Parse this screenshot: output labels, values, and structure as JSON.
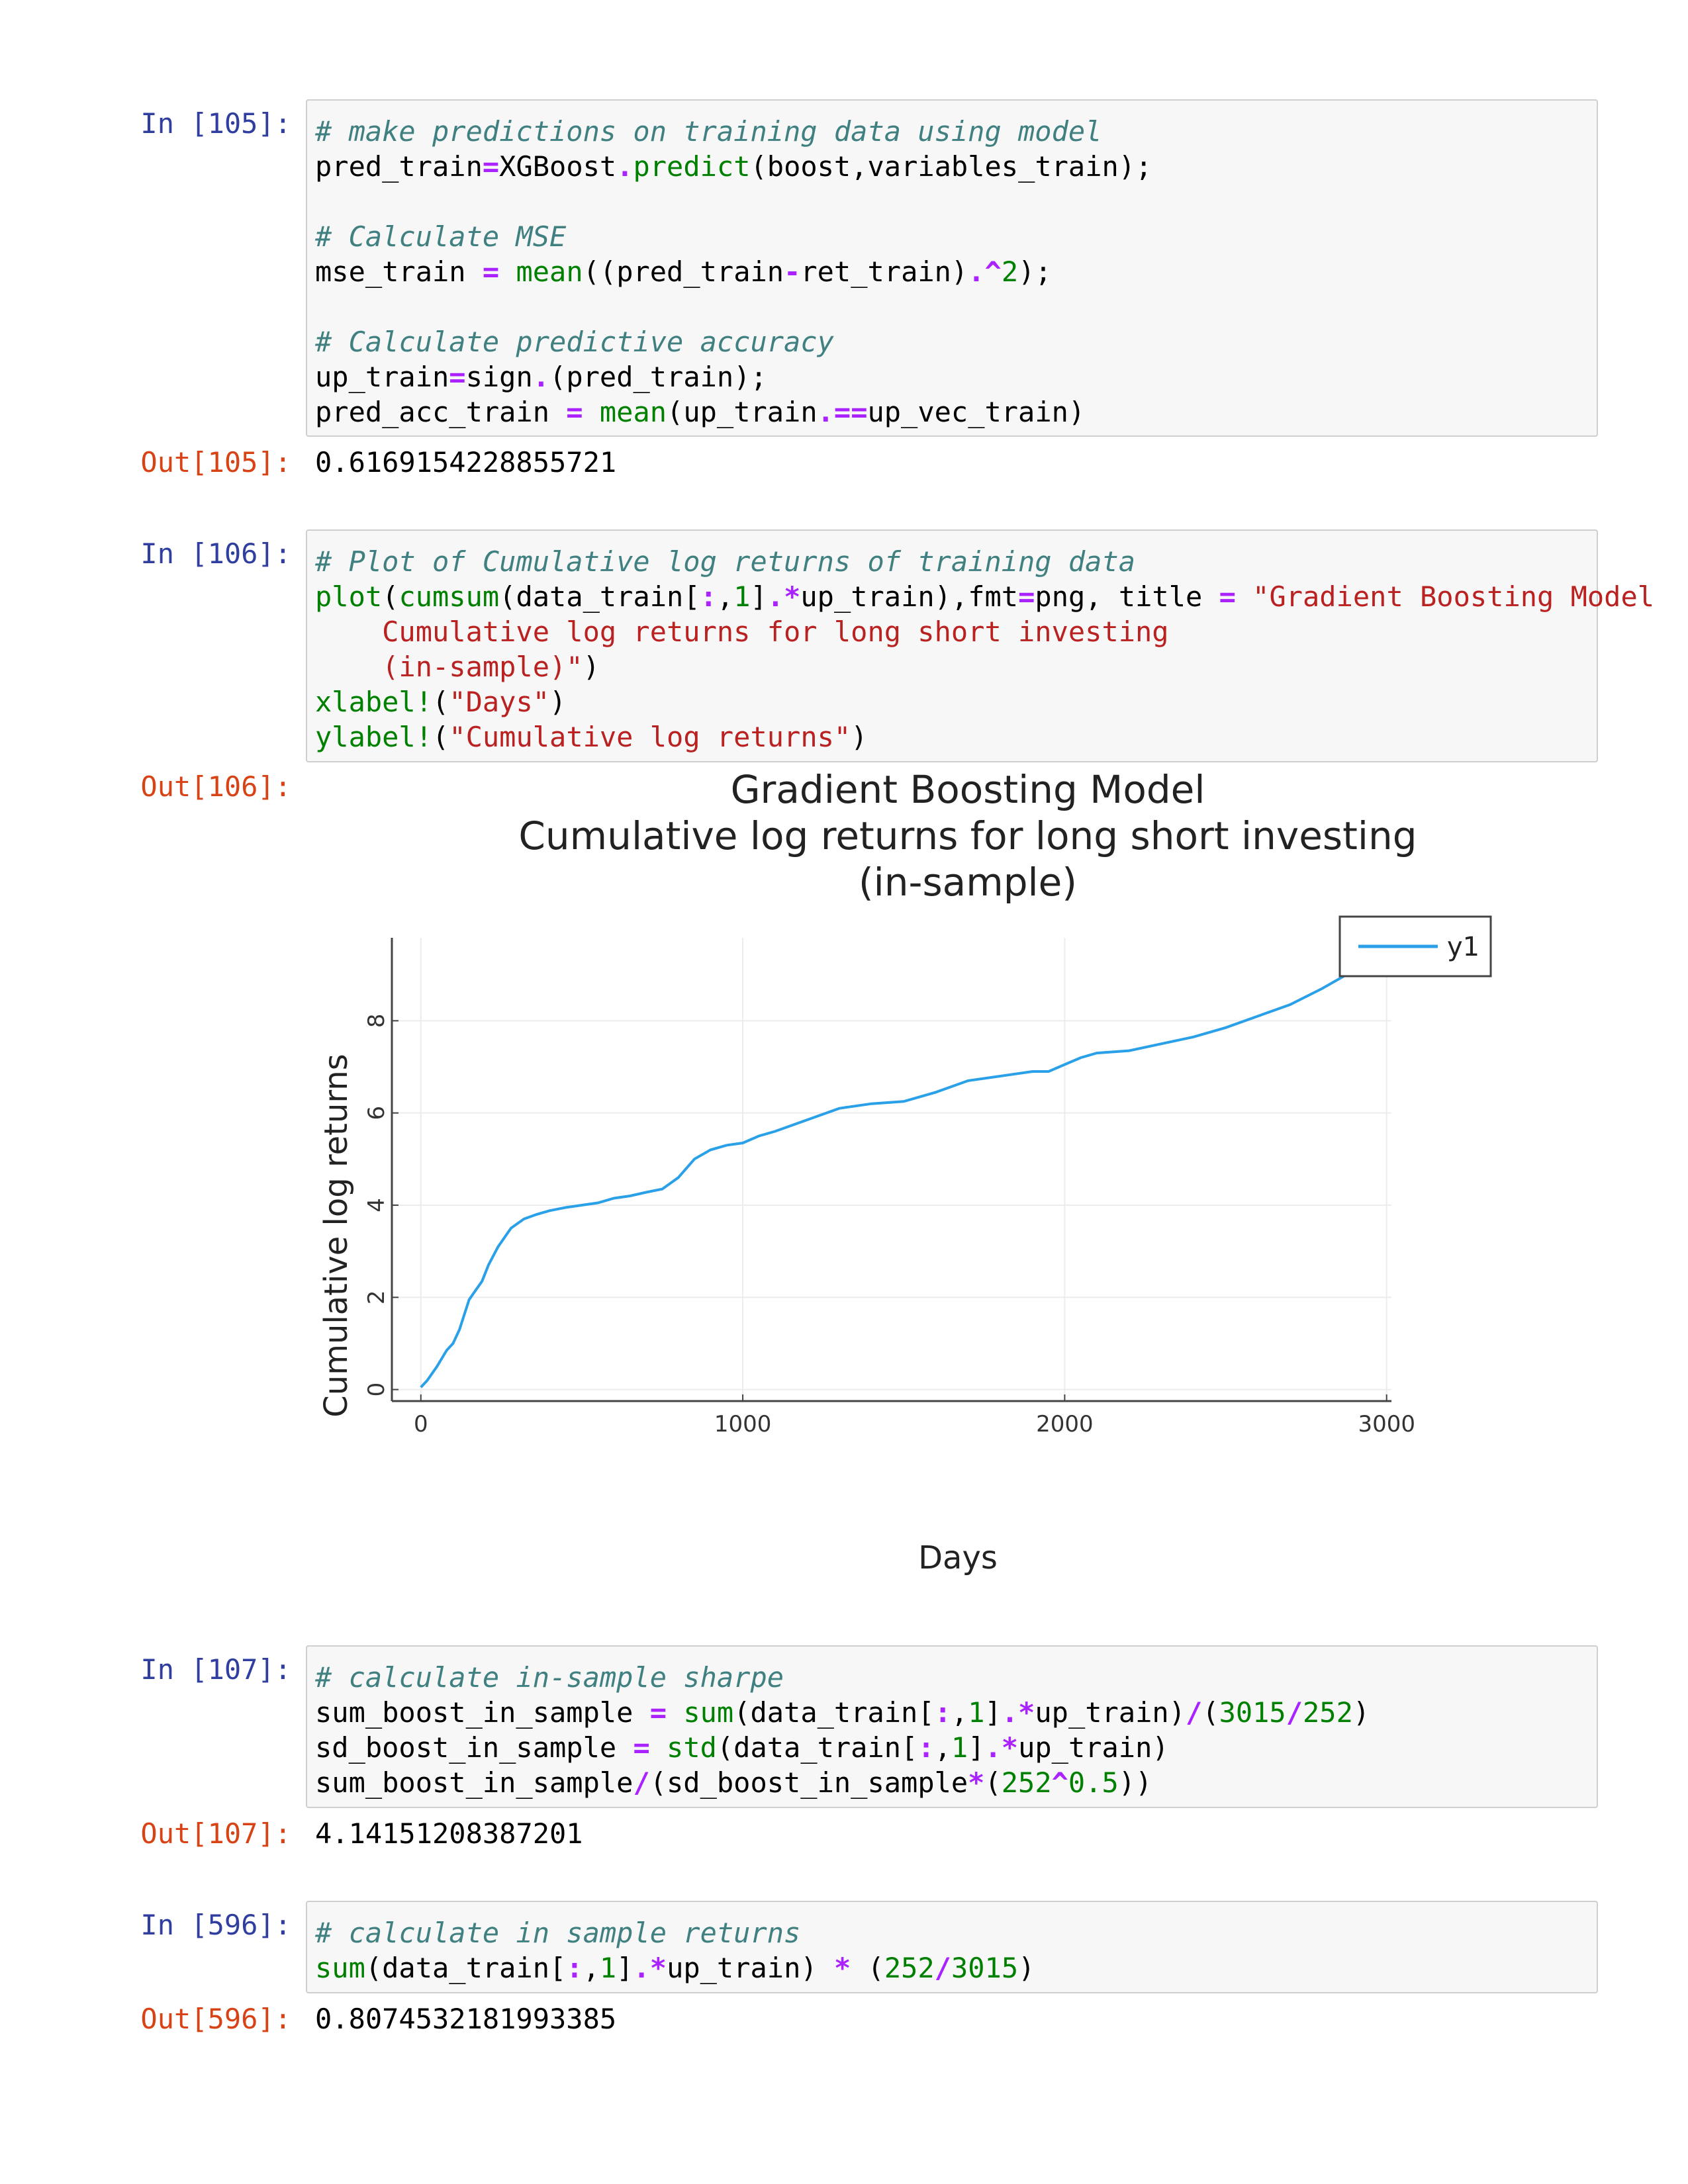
{
  "cells": [
    {
      "in_prompt": "In [105]:",
      "code": [
        [
          [
            "cm",
            "# make predictions on training data using model"
          ]
        ],
        [
          [
            "",
            "pred_train"
          ],
          [
            "op",
            "="
          ],
          [
            "",
            "XGBoost"
          ],
          [
            "op",
            "."
          ],
          [
            "nb",
            "predict"
          ],
          [
            "",
            "(boost,variables_train);"
          ]
        ],
        [],
        [
          [
            "cm",
            "# Calculate MSE"
          ]
        ],
        [
          [
            "",
            "mse_train "
          ],
          [
            "op",
            "="
          ],
          [
            "",
            " "
          ],
          [
            "nb",
            "mean"
          ],
          [
            "",
            "((pred_train"
          ],
          [
            "op",
            "-"
          ],
          [
            "",
            "ret_train)"
          ],
          [
            "op",
            ".^"
          ],
          [
            "mi",
            "2"
          ],
          [
            "",
            ");"
          ]
        ],
        [],
        [
          [
            "cm",
            "# Calculate predictive accuracy"
          ]
        ],
        [
          [
            "",
            "up_train"
          ],
          [
            "op",
            "="
          ],
          [
            "",
            "sign"
          ],
          [
            "op",
            "."
          ],
          [
            "",
            "(pred_train);"
          ]
        ],
        [
          [
            "",
            "pred_acc_train "
          ],
          [
            "op",
            "="
          ],
          [
            "",
            " "
          ],
          [
            "nb",
            "mean"
          ],
          [
            "",
            "(up_train"
          ],
          [
            "op",
            ".=="
          ],
          [
            "",
            "up_vec_train)"
          ]
        ]
      ],
      "out_prompt": "Out[105]:",
      "output": "0.6169154228855721"
    },
    {
      "in_prompt": "In [106]:",
      "code": [
        [
          [
            "cm",
            "# Plot of Cumulative log returns of training data"
          ]
        ],
        [
          [
            "nb",
            "plot"
          ],
          [
            "",
            "("
          ],
          [
            "nb",
            "cumsum"
          ],
          [
            "",
            "(data_train["
          ],
          [
            "op",
            ":"
          ],
          [
            "",
            ","
          ],
          [
            "mi",
            "1"
          ],
          [
            "",
            "]"
          ],
          [
            "op",
            ".*"
          ],
          [
            "",
            "up_train),fmt"
          ],
          [
            "op",
            "="
          ],
          [
            "",
            "png, title "
          ],
          [
            "op",
            "="
          ],
          [
            "",
            " "
          ],
          [
            "st",
            "\"Gradient Boosting Model"
          ]
        ],
        [
          [
            "st",
            "    Cumulative log returns for long short investing"
          ]
        ],
        [
          [
            "st",
            "    (in-sample)\""
          ],
          [
            "",
            ")"
          ]
        ],
        [
          [
            "nb",
            "xlabel!"
          ],
          [
            "",
            "("
          ],
          [
            "st",
            "\"Days\""
          ],
          [
            "",
            ")"
          ]
        ],
        [
          [
            "nb",
            "ylabel!"
          ],
          [
            "",
            "("
          ],
          [
            "st",
            "\"Cumulative log returns\""
          ],
          [
            "",
            ")"
          ]
        ]
      ],
      "out_prompt": "Out[106]:"
    },
    {
      "in_prompt": "In [107]:",
      "code": [
        [
          [
            "cm",
            "# calculate in-sample sharpe"
          ]
        ],
        [
          [
            "",
            "sum_boost_in_sample "
          ],
          [
            "op",
            "="
          ],
          [
            "",
            " "
          ],
          [
            "nb",
            "sum"
          ],
          [
            "",
            "(data_train["
          ],
          [
            "op",
            ":"
          ],
          [
            "",
            ","
          ],
          [
            "mi",
            "1"
          ],
          [
            "",
            "]"
          ],
          [
            "op",
            ".*"
          ],
          [
            "",
            "up_train)"
          ],
          [
            "op",
            "/"
          ],
          [
            "",
            "("
          ],
          [
            "mi",
            "3015"
          ],
          [
            "op",
            "/"
          ],
          [
            "mi",
            "252"
          ],
          [
            "",
            ")"
          ]
        ],
        [
          [
            "",
            "sd_boost_in_sample "
          ],
          [
            "op",
            "="
          ],
          [
            "",
            " "
          ],
          [
            "nb",
            "std"
          ],
          [
            "",
            "(data_train["
          ],
          [
            "op",
            ":"
          ],
          [
            "",
            ","
          ],
          [
            "mi",
            "1"
          ],
          [
            "",
            "]"
          ],
          [
            "op",
            ".*"
          ],
          [
            "",
            "up_train)"
          ]
        ],
        [
          [
            "",
            "sum_boost_in_sample"
          ],
          [
            "op",
            "/"
          ],
          [
            "",
            "(sd_boost_in_sample"
          ],
          [
            "op",
            "*"
          ],
          [
            "",
            "("
          ],
          [
            "mi",
            "252"
          ],
          [
            "op",
            "^"
          ],
          [
            "mi",
            "0.5"
          ],
          [
            "",
            "))"
          ]
        ]
      ],
      "out_prompt": "Out[107]:",
      "output": "4.14151208387201"
    },
    {
      "in_prompt": "In [596]:",
      "code": [
        [
          [
            "cm",
            "# calculate in sample returns"
          ]
        ],
        [
          [
            "nb",
            "sum"
          ],
          [
            "",
            "(data_train["
          ],
          [
            "op",
            ":"
          ],
          [
            "",
            ","
          ],
          [
            "mi",
            "1"
          ],
          [
            "",
            "]"
          ],
          [
            "op",
            ".*"
          ],
          [
            "",
            "up_train) "
          ],
          [
            "op",
            "*"
          ],
          [
            "",
            " ("
          ],
          [
            "mi",
            "252"
          ],
          [
            "op",
            "/"
          ],
          [
            "mi",
            "3015"
          ],
          [
            "",
            ")"
          ]
        ]
      ],
      "out_prompt": "Out[596]:",
      "output": "0.8074532181993385"
    }
  ],
  "chart_data": {
    "type": "line",
    "title": [
      "Gradient Boosting Model",
      "Cumulative log returns for long short investing",
      "(in-sample)"
    ],
    "xlabel": "Days",
    "ylabel": "Cumulative log returns",
    "xlim": [
      -90,
      3015
    ],
    "ylim": [
      -0.25,
      9.8
    ],
    "xticks": [
      0,
      1000,
      2000,
      3000
    ],
    "yticks": [
      0,
      2,
      4,
      6,
      8
    ],
    "grid": true,
    "legend": "top-right",
    "color": "#2aa0e8",
    "series": [
      {
        "name": "y1",
        "x": [
          0,
          20,
          50,
          80,
          100,
          120,
          150,
          170,
          190,
          210,
          240,
          280,
          320,
          360,
          400,
          450,
          500,
          550,
          600,
          650,
          700,
          750,
          800,
          850,
          900,
          950,
          1000,
          1050,
          1100,
          1200,
          1300,
          1400,
          1500,
          1600,
          1700,
          1800,
          1900,
          1950,
          2000,
          2050,
          2100,
          2200,
          2300,
          2400,
          2500,
          2600,
          2700,
          2800,
          2900,
          3000,
          3015
        ],
        "y": [
          0.05,
          0.2,
          0.5,
          0.85,
          1.0,
          1.3,
          1.95,
          2.15,
          2.35,
          2.7,
          3.1,
          3.5,
          3.7,
          3.8,
          3.88,
          3.95,
          4.0,
          4.05,
          4.15,
          4.2,
          4.28,
          4.35,
          4.6,
          5.0,
          5.2,
          5.3,
          5.35,
          5.5,
          5.6,
          5.85,
          6.1,
          6.2,
          6.25,
          6.45,
          6.7,
          6.8,
          6.9,
          6.9,
          7.05,
          7.2,
          7.3,
          7.35,
          7.5,
          7.65,
          7.85,
          8.1,
          8.35,
          8.7,
          9.1,
          9.5,
          9.65
        ]
      }
    ]
  }
}
